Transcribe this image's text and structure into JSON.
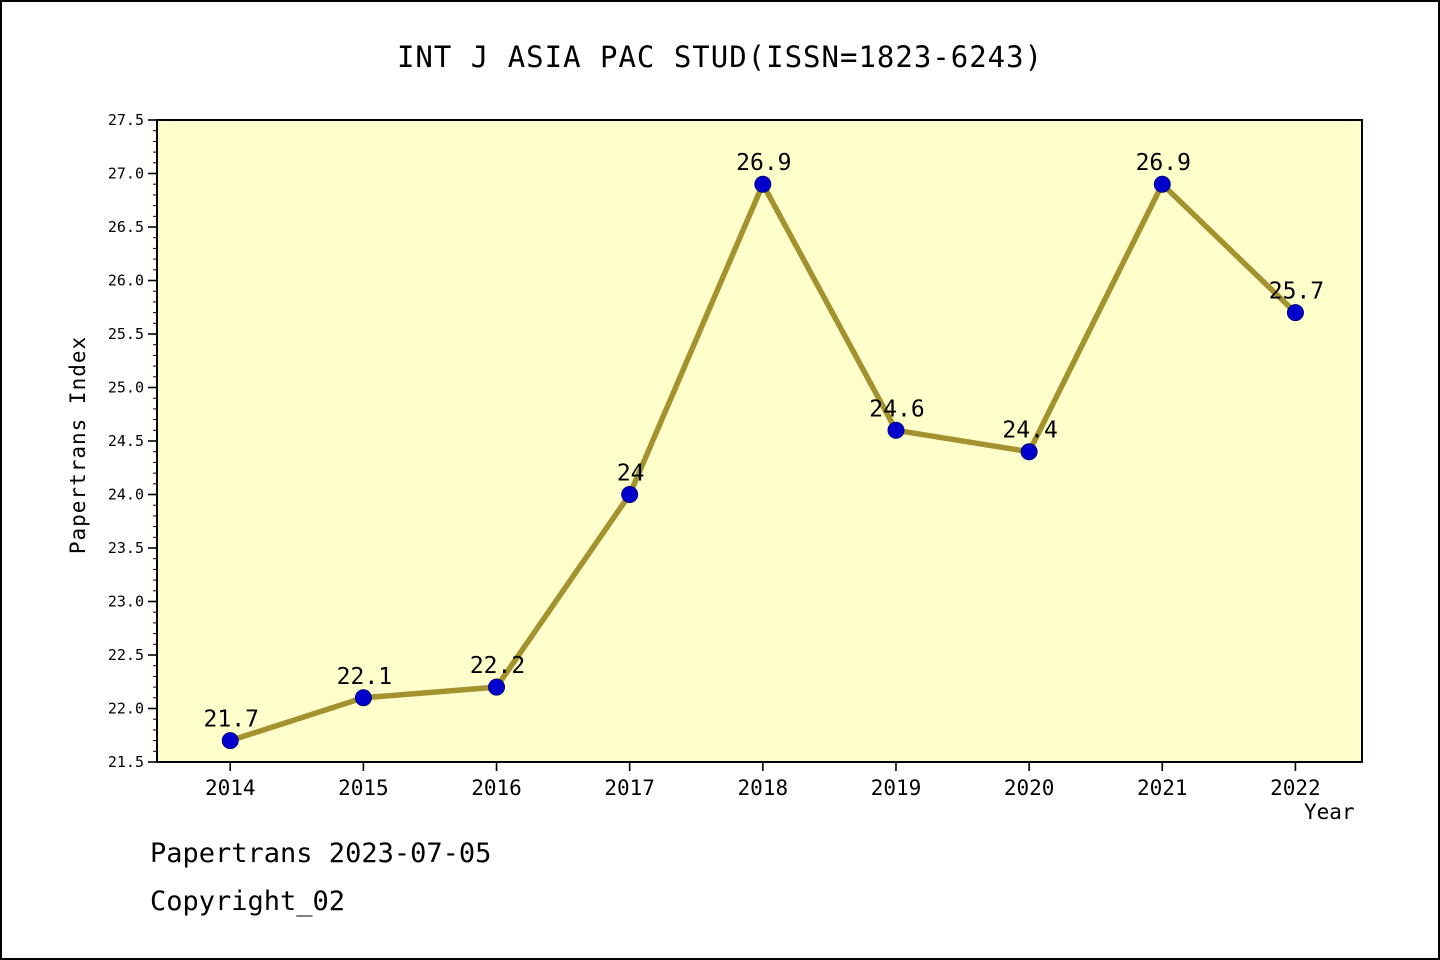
{
  "chart_data": {
    "type": "line",
    "title": "INT J ASIA PAC STUD(ISSN=1823-6243)",
    "xlabel": "Year",
    "ylabel": "Papertrans Index",
    "x": [
      2014,
      2015,
      2016,
      2017,
      2018,
      2019,
      2020,
      2021,
      2022
    ],
    "values": [
      21.7,
      22.1,
      22.2,
      24.0,
      26.9,
      24.6,
      24.4,
      26.9,
      25.7
    ],
    "point_labels": [
      "21.7",
      "22.1",
      "22.2",
      "24",
      "26.9",
      "24.6",
      "24.4",
      "26.9",
      "25.7"
    ],
    "xlim": [
      2013.45,
      2022.5
    ],
    "ylim": [
      21.5,
      27.5
    ],
    "ytick_major_step": 0.5,
    "ytick_minor_step": 0.1,
    "grid": false,
    "legend": "none",
    "colors": {
      "line": "#A3922E",
      "marker": "#0000CC",
      "marker_edge": "#00007F",
      "plot_bg": "#FFFFCC",
      "text": "#000000",
      "frame": "#000000"
    }
  },
  "footer": {
    "line1": "Papertrans 2023-07-05",
    "line2": "Copyright_02"
  }
}
